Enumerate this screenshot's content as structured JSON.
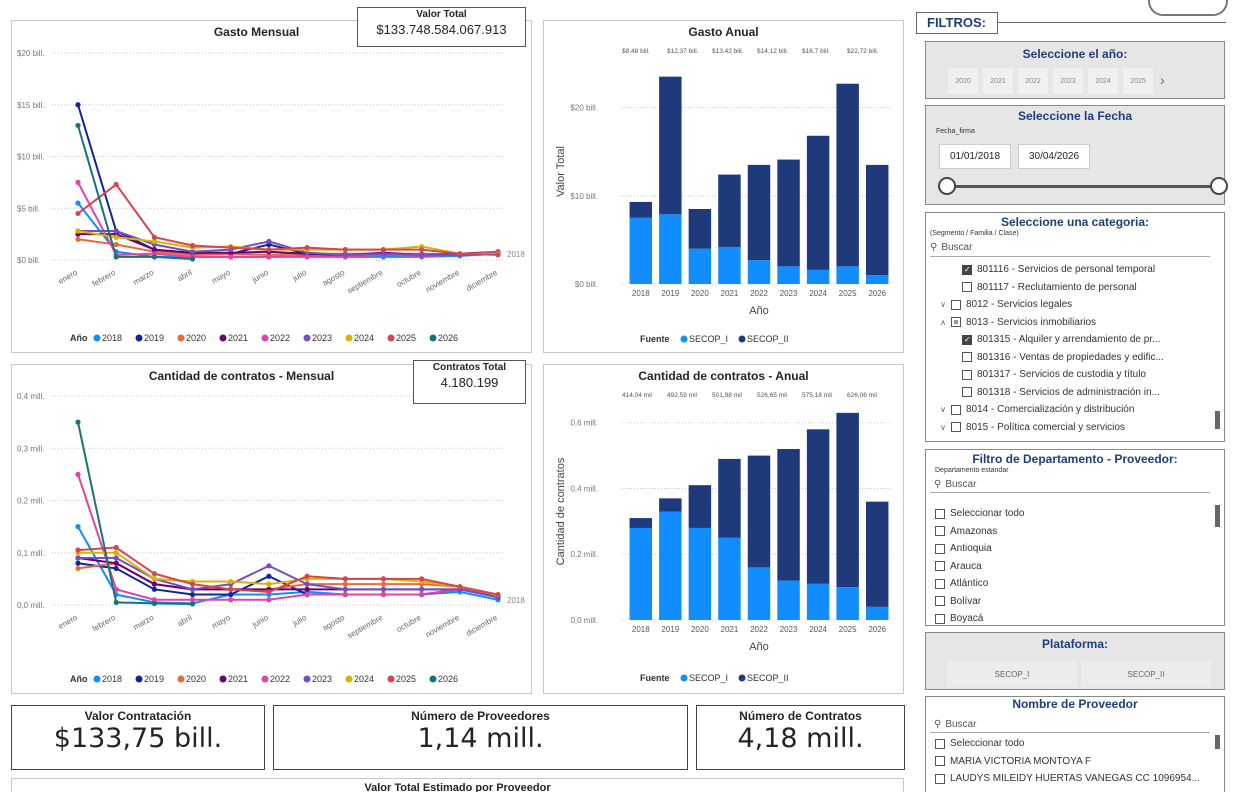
{
  "gasto_mensual": {
    "title": "Gasto Mensual",
    "card_label": "Valor Total",
    "card_value": "$133.748.584.067.913",
    "end_label": "2018",
    "legend_title": "Año",
    "chart_data": {
      "type": "line",
      "title": "Gasto Mensual",
      "categories": [
        "enero",
        "febrero",
        "marzo",
        "abril",
        "mayo",
        "junio",
        "julio",
        "agosto",
        "septiembre",
        "octubre",
        "noviembre",
        "diciembre"
      ],
      "y_tick_labels": [
        "$0 bill.",
        "$5 bill.",
        "$10 bill.",
        "$15 bill.",
        "$20 bill."
      ],
      "ylim": [
        0,
        20
      ],
      "series": [
        {
          "name": "2018",
          "color": "#118DFF",
          "values": [
            5.5,
            0.8,
            0.3,
            0.3,
            0.3,
            0.3,
            0.4,
            0.3,
            0.3,
            0.3,
            0.4,
            0.6
          ]
        },
        {
          "name": "2019",
          "color": "#12239E",
          "values": [
            15.0,
            2.8,
            1.0,
            0.6,
            0.6,
            1.5,
            0.6,
            0.5,
            0.6,
            0.5,
            0.5,
            0.7
          ]
        },
        {
          "name": "2020",
          "color": "#E66C37",
          "values": [
            2.0,
            1.5,
            0.8,
            0.5,
            0.6,
            0.5,
            0.6,
            0.6,
            0.6,
            0.6,
            0.5,
            0.7
          ]
        },
        {
          "name": "2021",
          "color": "#6B007B",
          "values": [
            2.5,
            2.5,
            1.0,
            0.7,
            0.7,
            0.8,
            0.6,
            0.5,
            0.7,
            0.5,
            0.6,
            0.8
          ]
        },
        {
          "name": "2022",
          "color": "#E044A7",
          "values": [
            7.5,
            0.5,
            0.6,
            0.3,
            0.3,
            0.3,
            0.3,
            0.3,
            0.5,
            0.4,
            0.5,
            0.8
          ]
        },
        {
          "name": "2023",
          "color": "#744EC2",
          "values": [
            2.8,
            2.8,
            1.5,
            0.8,
            1.0,
            1.8,
            0.7,
            0.5,
            0.6,
            0.5,
            0.5,
            0.7
          ]
        },
        {
          "name": "2024",
          "color": "#D9B300",
          "values": [
            2.8,
            2.2,
            1.8,
            1.2,
            1.3,
            1.0,
            1.0,
            1.0,
            1.0,
            1.3,
            0.6,
            0.6
          ]
        },
        {
          "name": "2025",
          "color": "#D64550",
          "values": [
            4.5,
            7.3,
            2.2,
            1.4,
            1.2,
            1.0,
            1.2,
            1.0,
            1.0,
            1.0,
            0.6,
            0.5
          ]
        },
        {
          "name": "2026",
          "color": "#197278",
          "values": [
            13.0,
            0.3,
            0.3,
            0.1,
            null,
            null,
            null,
            null,
            null,
            null,
            null,
            null
          ]
        }
      ]
    }
  },
  "gasto_anual": {
    "title": "Gasto Anual",
    "ylabel": "Valor Total",
    "xlabel": "Año",
    "legend_title": "Fuente",
    "chart_data": {
      "type": "bar",
      "stacked": true,
      "title": "Gasto Anual",
      "categories": [
        "2018",
        "2019",
        "2020",
        "2021",
        "2022",
        "2023",
        "2024",
        "2025",
        "2026"
      ],
      "y_tick_labels": [
        "$0 bill.",
        "$10 bill.",
        "$20 bill."
      ],
      "ylim": [
        0,
        25.5
      ],
      "total_labels": [
        "$8,48 bill.",
        "$12,37 bill.",
        "$13,42 bill.",
        "$14,12 bill.",
        "$16,7 bill.",
        "$22,72 bill."
      ],
      "series": [
        {
          "name": "SECOP_I",
          "color": "#118DFF",
          "values": [
            7.5,
            7.9,
            4.0,
            4.2,
            2.7,
            2.0,
            1.6,
            2.0,
            1.0
          ]
        },
        {
          "name": "SECOP_II",
          "color": "#1F3A7A",
          "values": [
            1.8,
            15.6,
            4.5,
            8.2,
            10.8,
            12.1,
            15.2,
            20.7,
            12.5
          ]
        }
      ]
    }
  },
  "contratos_mensual": {
    "title": "Cantidad de contratos - Mensual",
    "card_label": "Contratos Total",
    "card_value": "4.180.199",
    "end_label": "2018",
    "legend_title": "Año",
    "chart_data": {
      "type": "line",
      "title": "Cantidad de contratos - Mensual",
      "categories": [
        "enero",
        "febrero",
        "marzo",
        "abril",
        "mayo",
        "junio",
        "julio",
        "agosto",
        "septiembre",
        "octubre",
        "noviembre",
        "diciembre"
      ],
      "y_tick_labels": [
        "0,0 mill.",
        "0,1 mill.",
        "0,2 mill.",
        "0,3 mill.",
        "0,4 mill."
      ],
      "ylim": [
        0,
        0.4
      ],
      "series": [
        {
          "name": "2018",
          "color": "#118DFF",
          "values": [
            0.15,
            0.02,
            0.005,
            0.003,
            0.02,
            0.02,
            0.025,
            0.02,
            0.02,
            0.02,
            0.025,
            0.01
          ]
        },
        {
          "name": "2019",
          "color": "#12239E",
          "values": [
            0.08,
            0.07,
            0.03,
            0.02,
            0.02,
            0.055,
            0.02,
            0.02,
            0.02,
            0.02,
            0.03,
            0.015
          ]
        },
        {
          "name": "2020",
          "color": "#E66C37",
          "values": [
            0.07,
            0.08,
            0.04,
            0.03,
            0.03,
            0.03,
            0.04,
            0.04,
            0.04,
            0.04,
            0.035,
            0.015
          ]
        },
        {
          "name": "2021",
          "color": "#6B007B",
          "values": [
            0.09,
            0.08,
            0.04,
            0.03,
            0.03,
            0.03,
            0.03,
            0.03,
            0.03,
            0.03,
            0.03,
            0.015
          ]
        },
        {
          "name": "2022",
          "color": "#E044A7",
          "values": [
            0.25,
            0.03,
            0.01,
            0.01,
            0.01,
            0.01,
            0.02,
            0.02,
            0.02,
            0.02,
            0.03,
            0.015
          ]
        },
        {
          "name": "2023",
          "color": "#744EC2",
          "values": [
            0.09,
            0.09,
            0.05,
            0.03,
            0.04,
            0.075,
            0.04,
            0.03,
            0.03,
            0.03,
            0.03,
            0.015
          ]
        },
        {
          "name": "2024",
          "color": "#D9B300",
          "values": [
            0.1,
            0.1,
            0.05,
            0.045,
            0.045,
            0.04,
            0.05,
            0.05,
            0.05,
            0.045,
            0.035,
            0.02
          ]
        },
        {
          "name": "2025",
          "color": "#D64550",
          "values": [
            0.105,
            0.11,
            0.06,
            0.04,
            0.03,
            0.025,
            0.055,
            0.05,
            0.05,
            0.05,
            0.035,
            0.02
          ]
        },
        {
          "name": "2026",
          "color": "#197278",
          "values": [
            0.35,
            0.005,
            0.003,
            0.002,
            null,
            null,
            null,
            null,
            null,
            null,
            null,
            null
          ]
        }
      ]
    }
  },
  "contratos_anual": {
    "title": "Cantidad de contratos - Anual",
    "ylabel": "Cantidad de contratos",
    "xlabel": "Año",
    "legend_title": "Fuente",
    "chart_data": {
      "type": "bar",
      "stacked": true,
      "title": "Cantidad de contratos - Anual",
      "categories": [
        "2018",
        "2019",
        "2020",
        "2021",
        "2022",
        "2023",
        "2024",
        "2025",
        "2026"
      ],
      "y_tick_labels": [
        "0,0 mill.",
        "0,2 mill.",
        "0,4 mill.",
        "0,6 mill."
      ],
      "ylim": [
        0,
        0.66
      ],
      "total_labels": [
        "414,04 mil",
        "492,59 mil",
        "501,98 mil",
        "526,65 mil",
        "575,18 mil",
        "626,06 mil"
      ],
      "series": [
        {
          "name": "SECOP_I",
          "color": "#118DFF",
          "values": [
            0.28,
            0.33,
            0.28,
            0.25,
            0.16,
            0.12,
            0.11,
            0.1,
            0.04
          ]
        },
        {
          "name": "SECOP_II",
          "color": "#1F3A7A",
          "values": [
            0.03,
            0.04,
            0.13,
            0.24,
            0.34,
            0.4,
            0.47,
            0.53,
            0.32
          ]
        }
      ]
    }
  },
  "kpis": {
    "valor_label": "Valor Contratación",
    "valor_value": "$133,75 bill.",
    "proveedores_label": "Número de Proveedores",
    "proveedores_value": "1,14 mill.",
    "contratos_label": "Número de Contratos",
    "contratos_value": "4,18 mill.",
    "bottom_title": "Valor Total Estimado por Proveedor"
  },
  "filters": {
    "title": "FILTROS:",
    "year": {
      "title": "Seleccione el año:",
      "options": [
        "2020",
        "2021",
        "2022",
        "2023",
        "2024",
        "2025"
      ]
    },
    "date": {
      "title": "Seleccione la Fecha",
      "sublabel": "Fecha_firma",
      "start": "01/01/2018",
      "end": "30/04/2026"
    },
    "category": {
      "title": "Seleccione una categoria:",
      "sublabel": "(Segmento / Familia / Clase)",
      "search": "Buscar",
      "items": [
        {
          "label": "801116 - Servicios de personal temporal",
          "state": "on",
          "indent": 2,
          "exp": ""
        },
        {
          "label": "801117 - Reclutamiento de personal",
          "state": "off",
          "indent": 2,
          "exp": ""
        },
        {
          "label": "8012 - Servicios legales",
          "state": "off",
          "indent": 1,
          "exp": "∨"
        },
        {
          "label": "8013 - Servicios inmobiliarios",
          "state": "part",
          "indent": 1,
          "exp": "∧"
        },
        {
          "label": "801315 - Alquiler y arrendamiento de pr...",
          "state": "on",
          "indent": 2,
          "exp": ""
        },
        {
          "label": "801316 - Ventas de propiedades y edific...",
          "state": "off",
          "indent": 2,
          "exp": ""
        },
        {
          "label": "801317 - Servicios de custodia y título",
          "state": "off",
          "indent": 2,
          "exp": ""
        },
        {
          "label": "801318 - Servicios de administración in...",
          "state": "off",
          "indent": 2,
          "exp": ""
        },
        {
          "label": "8014 - Comercialización y distribución",
          "state": "off",
          "indent": 1,
          "exp": "∨"
        },
        {
          "label": "8015 - Política comercial y servicios",
          "state": "off",
          "indent": 1,
          "exp": "∨"
        }
      ]
    },
    "departamento": {
      "title": "Filtro de Departamento - Proveedor:",
      "sublabel": "Departamento estandar",
      "search": "Buscar",
      "items": [
        "Seleccionar todo",
        "Amazonas",
        "Antioquia",
        "Arauca",
        "Atlántico",
        "Bolívar",
        "Boyacá"
      ]
    },
    "plataforma": {
      "title": "Plataforma:",
      "options": [
        "SECOP_I",
        "SECOP_II"
      ]
    },
    "proveedor": {
      "title": "Nombre de Proveedor",
      "search": "Buscar",
      "items": [
        "Seleccionar todo",
        "MARIA VICTORIA MONTOYA F",
        "LAUDYS MILEIDY HUERTAS VANEGAS CC 1096954..."
      ]
    }
  }
}
